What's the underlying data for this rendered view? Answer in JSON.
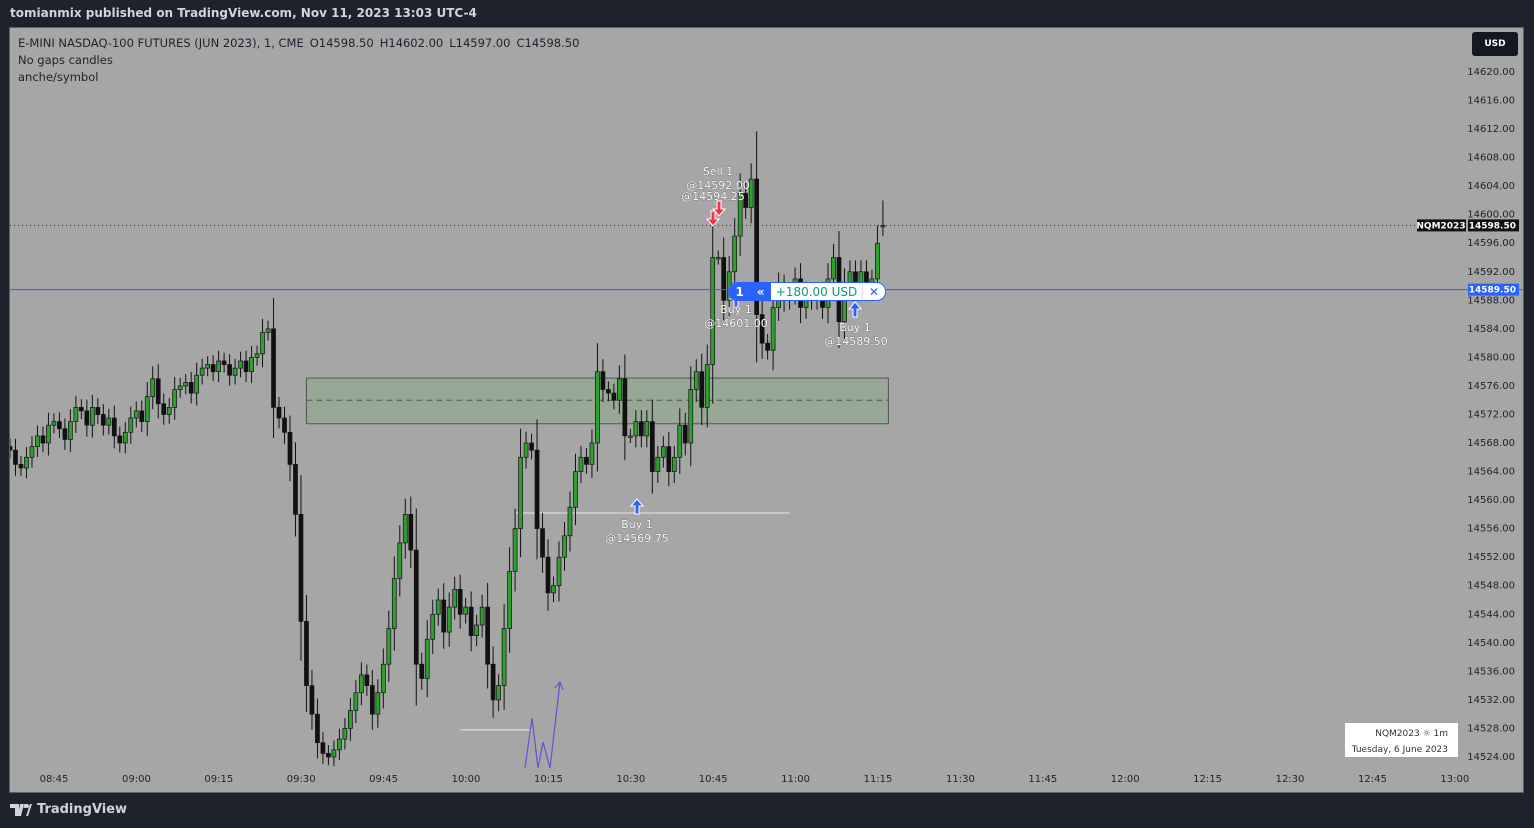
{
  "publish_line": "tomianmix published on TradingView.com, Nov 11, 2023 13:03 UTC-4",
  "legend": {
    "symbol_title": "E-MINI NASDAQ-100 FUTURES (JUN 2023), 1, CME",
    "open": "O14598.50",
    "high": "H14602.00",
    "low": "L14597.00",
    "close": "C14598.50",
    "line2": "No gaps candles",
    "line3": "anche/symbol"
  },
  "currency_button": "USD",
  "price_labels": {
    "symbol": "NQM2023",
    "last_price": "14598.50",
    "position_price": "14589.50"
  },
  "position": {
    "qty": "1",
    "reverse_icon": "double-chevron-left-icon",
    "pnl": "+180.00 USD",
    "close_icon": "x-icon"
  },
  "trades": [
    {
      "side": "sell",
      "text1": "Sell 1",
      "text2": "@14592.00",
      "text3": "@14594.25",
      "price": 14594.25
    },
    {
      "side": "buy",
      "text1": "Buy 1",
      "text2": "@14601.00",
      "price": 14601.0
    },
    {
      "side": "buy",
      "text1": "Buy 1",
      "text2": "@14589.50",
      "price": 14589.5
    },
    {
      "side": "buy",
      "text1": "Buy 1",
      "text2": "@14569.75",
      "price": 14569.75
    }
  ],
  "infobox": {
    "line1": "NQM2023 ☼ 1m",
    "line2": "Tuesday, 6 June 2023"
  },
  "footer": {
    "brand": "TradingView"
  },
  "colors": {
    "background": "#a6a6a6",
    "bull": "#2ea02e",
    "bear": "#111111",
    "position_line": "#2962ff",
    "sell_arrow": "#f23645",
    "buy_arrow": "#2962ff",
    "zone": "#97a896"
  },
  "chart_data": {
    "type": "candlestick",
    "interval": "1m",
    "start_time": "08:37",
    "closes": [
      14567,
      14565,
      14564.5,
      14566,
      14567.5,
      14569,
      14568,
      14570.5,
      14571,
      14570,
      14568.5,
      14571,
      14573,
      14572.5,
      14570.5,
      14573,
      14572,
      14570.5,
      14571.5,
      14569,
      14568,
      14569.5,
      14571.5,
      14572.5,
      14571,
      14574.5,
      14577,
      14573.5,
      14572,
      14573,
      14575.5,
      14576,
      14576.5,
      14575,
      14577.5,
      14578.5,
      14579,
      14578,
      14579.5,
      14579,
      14577.5,
      14578.5,
      14579.5,
      14578,
      14580,
      14580.5,
      14583.5,
      14584,
      14573,
      14571.5,
      14569.5,
      14565,
      14558,
      14543,
      14534,
      14530,
      14526,
      14524.5,
      14524,
      14525,
      14526.5,
      14528,
      14530.5,
      14533,
      14535.5,
      14534,
      14530,
      14533,
      14537,
      14542,
      14549,
      14554,
      14558,
      14553,
      14537,
      14535,
      14540.5,
      14544,
      14546,
      14541.5,
      14545,
      14547.5,
      14544,
      14545,
      14541,
      14542.5,
      14545,
      14537,
      14532,
      14534,
      14542,
      14550,
      14556,
      14566,
      14568,
      14567,
      14556,
      14552,
      14547,
      14548,
      14552,
      14555,
      14559,
      14564,
      14566,
      14565,
      14568,
      14578,
      14575.5,
      14575,
      14574,
      14577,
      14569,
      14569,
      14571,
      14569,
      14571,
      14564,
      14566,
      14567.5,
      14564,
      14566,
      14570.5,
      14568,
      14575.5,
      14578,
      14573,
      14579,
      14594,
      14594,
      14588,
      14592,
      14597,
      14603,
      14601,
      14605,
      14586,
      14582,
      14581,
      14587,
      14590,
      14588,
      14589,
      14591,
      14587,
      14589,
      14588,
      14589,
      14587,
      14591,
      14594,
      14585,
      14590,
      14592,
      14590,
      14592,
      14590,
      14591,
      14596,
      14598.5
    ],
    "last_bar": {
      "open": 14598.5,
      "high": 14602.0,
      "low": 14597.0,
      "close": 14598.5
    },
    "y_ticks": [
      "14620.00",
      "14616.00",
      "14612.00",
      "14608.00",
      "14604.00",
      "14600.00",
      "14596.00",
      "14592.00",
      "14588.00",
      "14584.00",
      "14580.00",
      "14576.00",
      "14572.00",
      "14568.00",
      "14564.00",
      "14560.00",
      "14556.00",
      "14552.00",
      "14548.00",
      "14544.00",
      "14540.00",
      "14536.00",
      "14532.00",
      "14528.00",
      "14524.00"
    ],
    "x_ticks": [
      "08:45",
      "09:00",
      "09:15",
      "09:30",
      "09:45",
      "10:00",
      "10:15",
      "10:30",
      "10:45",
      "11:00",
      "11:15",
      "11:30",
      "11:45",
      "12:00",
      "12:15",
      "12:30",
      "12:45",
      "13:00"
    ],
    "ylim": [
      14522,
      14627
    ],
    "zone": {
      "top": 14577.1,
      "bottom": 14570.7,
      "mid": 14574.0,
      "from": "09:31",
      "to": "11:17"
    },
    "levels": [
      {
        "price": 14558.2,
        "from": "10:09",
        "to": "10:59",
        "color": "#e8e8e8"
      },
      {
        "price": 14527.8,
        "from": "09:59",
        "to": "10:12",
        "color": "#e8e8e8"
      }
    ],
    "last_price_line": 14598.5,
    "position_line": 14589.5
  }
}
